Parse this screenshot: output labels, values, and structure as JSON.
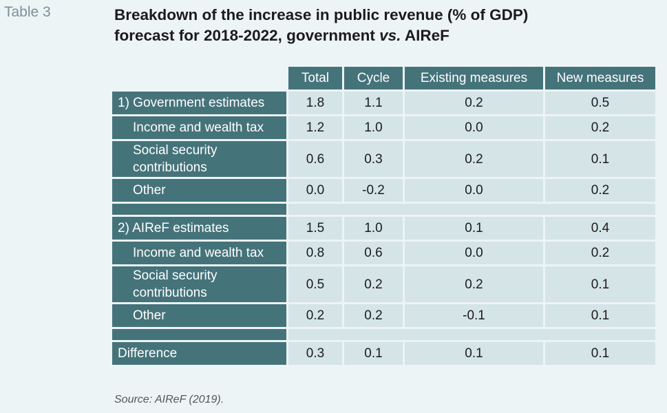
{
  "table_label": "Table 3",
  "title": {
    "line1": "Breakdown of the increase in public revenue (% of GDP)",
    "line2_prefix": "forecast for 2018-2022, government ",
    "line2_vs": "vs.",
    "line2_suffix": " AIReF"
  },
  "columns": [
    "Total",
    "Cycle",
    "Existing measures",
    "New measures"
  ],
  "rows": [
    {
      "label": "1) Government estimates",
      "values": [
        "1.8",
        "1.1",
        "0.2",
        "0.5"
      ]
    },
    {
      "label": "Income and wealth tax",
      "values": [
        "1.2",
        "1.0",
        "0.0",
        "0.2"
      ]
    },
    {
      "label": "Social security contributions",
      "values": [
        "0.6",
        "0.3",
        "0.2",
        "0.1"
      ]
    },
    {
      "label": "Other",
      "values": [
        "0.0",
        "-0.2",
        "0.0",
        "0.2"
      ]
    },
    {
      "label": "2) AIReF estimates",
      "values": [
        "1.5",
        "1.0",
        "0.1",
        "0.4"
      ]
    },
    {
      "label": "Income and wealth tax",
      "values": [
        "0.8",
        "0.6",
        "0.0",
        "0.2"
      ]
    },
    {
      "label": "Social security contributions",
      "values": [
        "0.5",
        "0.2",
        "0.2",
        "0.1"
      ]
    },
    {
      "label": "Other",
      "values": [
        "0.2",
        "0.2",
        "-0.1",
        "0.1"
      ]
    },
    {
      "label": "Difference",
      "values": [
        "0.3",
        "0.1",
        "0.1",
        "0.1"
      ]
    }
  ],
  "source": "Source: AIReF (2019).",
  "colors": {
    "header_fill": "#45737a",
    "cell_fill": "#d4e4e7",
    "page_background": "#edf4f6"
  }
}
